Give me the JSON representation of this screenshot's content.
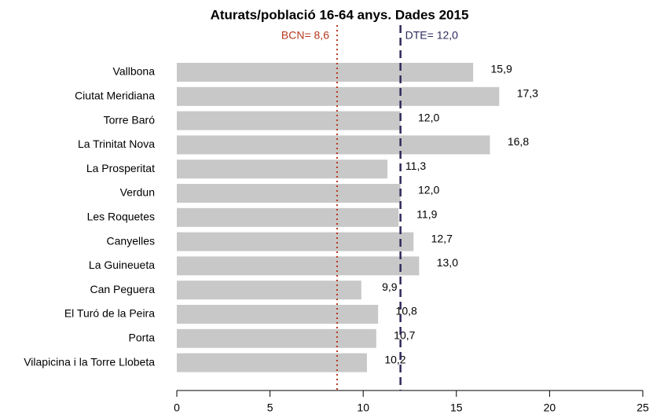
{
  "chart_data": {
    "type": "barh",
    "title": "Aturats/població 16-64 anys. Dades 2015",
    "categories": [
      "Vallbona",
      "Ciutat Meridiana",
      "Torre Baró",
      "La Trinitat Nova",
      "La Prosperitat",
      "Verdun",
      "Les Roquetes",
      "Canyelles",
      "La Guineueta",
      "Can Peguera",
      "El Turó de la Peira",
      "Porta",
      "Vilapicina i la Torre Llobeta"
    ],
    "values": [
      15.9,
      17.3,
      12.0,
      16.8,
      11.3,
      12.0,
      11.9,
      12.7,
      13.0,
      9.9,
      10.8,
      10.7,
      10.2
    ],
    "value_labels": [
      "15,9",
      "17,3",
      "12,0",
      "16,8",
      "11,3",
      "12,0",
      "11,9",
      "12,7",
      "13,0",
      "9,9",
      "10,8",
      "10,7",
      "10,2"
    ],
    "color": "#c8c8c8",
    "xlim": [
      0,
      25
    ],
    "xticks": [
      0,
      5,
      10,
      15,
      20,
      25
    ],
    "reference_lines": [
      {
        "label": "BCN= 8,6",
        "value": 8.6,
        "color": "#b5391f",
        "style": "dotted"
      },
      {
        "label": "DTE= 12,0",
        "value": 12.0,
        "color": "#2e2b5a",
        "style": "dashed"
      }
    ]
  }
}
